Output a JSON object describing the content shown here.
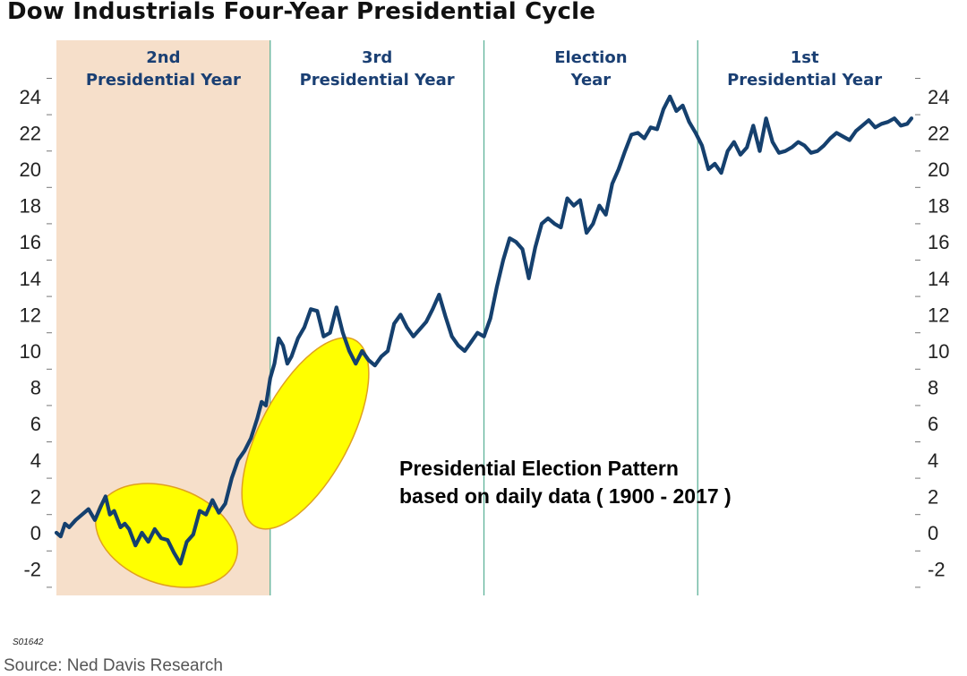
{
  "title": "Dow Industrials Four-Year Presidential Cycle",
  "code": "S01642",
  "source": "Source: Ned Davis Research",
  "colors": {
    "line": "#15406e",
    "phase_label": "#1a3f73",
    "shade": "#f6dfca",
    "divider": "#5fb39a",
    "highlight_fill": "#ffff00",
    "highlight_stroke": "#e0a020"
  },
  "chart_data": {
    "type": "line",
    "title": "Dow Industrials Four-Year Presidential Cycle",
    "annotation": [
      "Presidential Election Pattern",
      "based on daily data ( 1900 - 2017 )"
    ],
    "phases": [
      {
        "label": [
          "2nd",
          "Presidential Year"
        ],
        "shaded": true
      },
      {
        "label": [
          "3rd",
          "Presidential Year"
        ],
        "shaded": false
      },
      {
        "label": [
          "Election",
          "Year"
        ],
        "shaded": false
      },
      {
        "label": [
          "1st",
          "Presidential Year"
        ],
        "shaded": false
      }
    ],
    "ylim": [
      -3,
      26
    ],
    "yticks": [
      -2,
      0,
      2,
      4,
      6,
      8,
      10,
      12,
      14,
      16,
      18,
      20,
      22,
      24
    ],
    "y_axes": "both",
    "highlighted_phase_segments": [
      "early 2nd Presidential Year dip",
      "late 2nd to early 3rd Presidential Year rally"
    ],
    "series": [
      {
        "x": [
          0,
          0.02,
          0.04,
          0.06,
          0.09,
          0.12,
          0.15,
          0.18,
          0.21,
          0.23,
          0.25,
          0.27,
          0.3,
          0.32,
          0.34,
          0.37,
          0.4,
          0.43,
          0.46,
          0.49,
          0.52,
          0.55,
          0.58,
          0.61,
          0.64,
          0.67,
          0.7,
          0.73,
          0.76,
          0.79,
          0.82,
          0.85,
          0.88,
          0.91,
          0.94,
          0.96,
          0.98,
          1.0,
          1.02,
          1.04,
          1.06,
          1.08,
          1.1,
          1.13,
          1.16,
          1.19,
          1.22,
          1.25,
          1.28,
          1.31,
          1.34,
          1.37,
          1.4,
          1.43,
          1.46,
          1.49,
          1.52,
          1.55,
          1.58,
          1.61,
          1.64,
          1.67,
          1.7,
          1.73,
          1.76,
          1.79,
          1.82,
          1.85,
          1.88,
          1.91,
          1.94,
          1.97,
          2.0,
          2.03,
          2.06,
          2.09,
          2.12,
          2.15,
          2.18,
          2.21,
          2.24,
          2.27,
          2.3,
          2.33,
          2.36,
          2.39,
          2.42,
          2.45,
          2.48,
          2.51,
          2.54,
          2.57,
          2.6,
          2.63,
          2.66,
          2.69,
          2.72,
          2.75,
          2.78,
          2.81,
          2.84,
          2.87,
          2.9,
          2.93,
          2.96,
          2.99,
          3.02,
          3.05,
          3.08,
          3.11,
          3.14,
          3.17,
          3.2,
          3.23,
          3.26,
          3.29,
          3.32,
          3.35,
          3.38,
          3.41,
          3.44,
          3.47,
          3.5,
          3.53,
          3.56,
          3.59,
          3.62,
          3.65,
          3.68,
          3.71,
          3.74,
          3.77,
          3.8,
          3.83,
          3.86,
          3.89,
          3.92,
          3.95,
          3.98,
          4.0
        ],
        "y": [
          0,
          -0.2,
          0.5,
          0.3,
          0.7,
          1.0,
          1.3,
          0.7,
          1.5,
          2.0,
          1.0,
          1.2,
          0.3,
          0.5,
          0.2,
          -0.7,
          0.0,
          -0.5,
          0.2,
          -0.3,
          -0.4,
          -1.1,
          -1.7,
          -0.5,
          -0.1,
          1.2,
          1.0,
          1.8,
          1.1,
          1.6,
          3.0,
          4.0,
          4.5,
          5.2,
          6.3,
          7.2,
          7.0,
          8.5,
          9.3,
          10.7,
          10.3,
          9.3,
          9.7,
          10.7,
          11.3,
          12.3,
          12.2,
          10.8,
          11.0,
          12.4,
          11.0,
          10.0,
          9.3,
          10.0,
          9.5,
          9.2,
          9.7,
          10.0,
          11.5,
          12.0,
          11.3,
          10.8,
          11.2,
          11.6,
          12.3,
          13.1,
          11.9,
          10.8,
          10.3,
          10.0,
          10.5,
          11.0,
          10.8,
          11.8,
          13.5,
          15.0,
          16.2,
          16.0,
          15.6,
          14.0,
          15.7,
          17.0,
          17.3,
          17.0,
          16.8,
          18.4,
          18.0,
          18.3,
          16.5,
          17.0,
          18.0,
          17.5,
          19.2,
          20.0,
          21.0,
          21.9,
          22.0,
          21.7,
          22.3,
          22.2,
          23.3,
          24.0,
          23.2,
          23.5,
          22.6,
          22.0,
          21.3,
          20.0,
          20.3,
          19.8,
          21.0,
          21.5,
          20.8,
          21.2,
          22.4,
          21.0,
          22.8,
          21.5,
          20.9,
          21.0,
          21.2,
          21.5,
          21.3,
          20.9,
          21.0,
          21.3,
          21.7,
          22.0,
          21.8,
          21.6,
          22.1,
          22.4,
          22.7,
          22.3,
          22.5,
          22.6,
          22.8,
          22.4,
          22.5,
          22.8
        ]
      }
    ]
  }
}
